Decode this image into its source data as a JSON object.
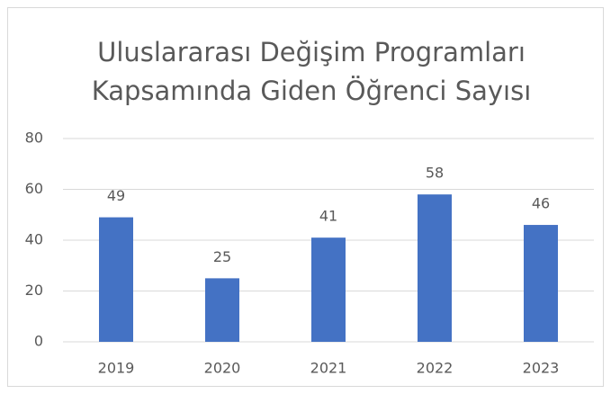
{
  "chart_data": {
    "type": "bar",
    "title": [
      "Uluslararası Değişim Programları",
      "Kapsamında Giden Öğrenci Sayısı"
    ],
    "categories": [
      "2019",
      "2020",
      "2021",
      "2022",
      "2023"
    ],
    "values": [
      49,
      25,
      41,
      58,
      46
    ],
    "color": "#4472c4",
    "ylim": [
      0,
      80
    ],
    "yticks": [
      0,
      20,
      40,
      60,
      80
    ],
    "grid": true
  }
}
